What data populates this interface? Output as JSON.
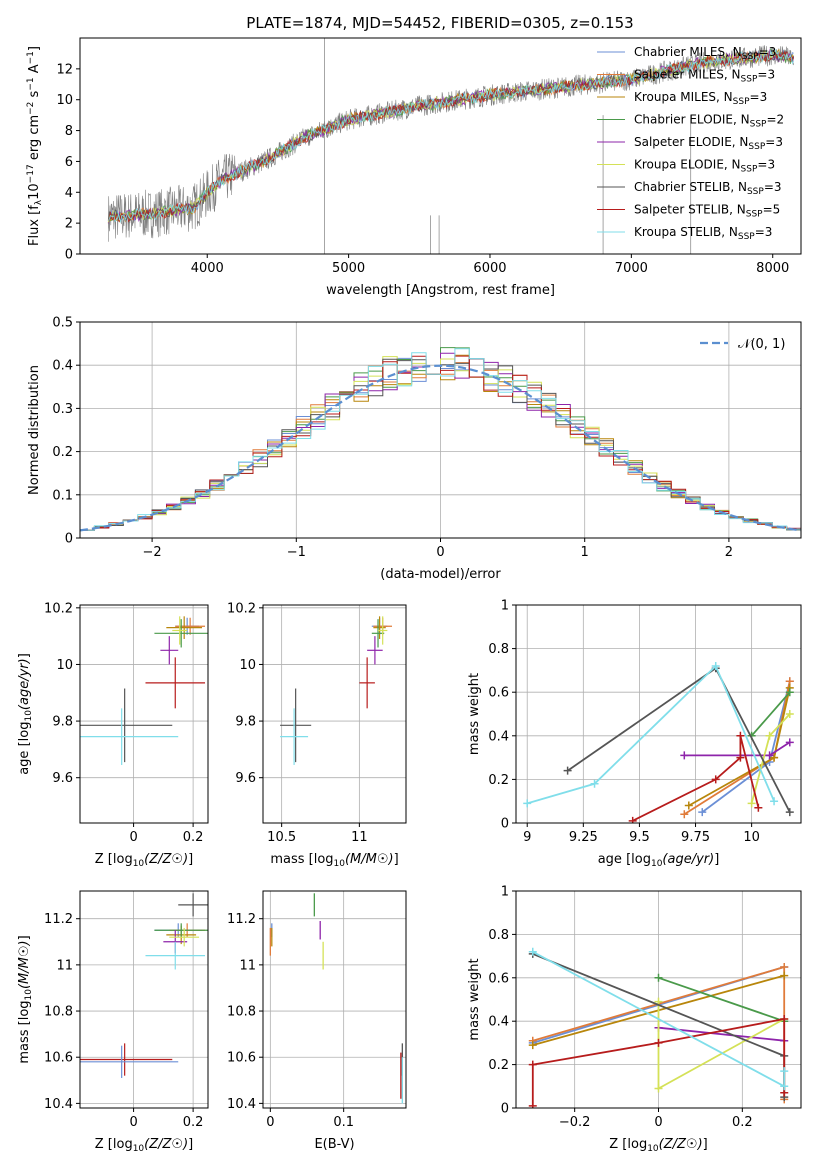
{
  "figure": {
    "title": "PLATE=1874, MJD=54452, FIBERID=0305, z=0.153"
  },
  "colors": {
    "grid": "#b0b0b0",
    "data_gray": "#808080",
    "models": [
      "#6b8fd6",
      "#e07b3a",
      "#b8860b",
      "#4a9a4a",
      "#8e24aa",
      "#d4e157",
      "#555555",
      "#b71c1c",
      "#80deea"
    ]
  },
  "chart_data": [
    {
      "id": "spectrum",
      "type": "line",
      "xlabel": "wavelength [Angstrom, rest frame]",
      "ylabel": "Flux [f_λ 10^-17 erg cm^-2 s^-1 A^-1]",
      "xlim": [
        3100,
        8200
      ],
      "ylim": [
        0,
        14
      ],
      "xticks": [
        4000,
        5000,
        6000,
        7000,
        8000
      ],
      "yticks": [
        0,
        2,
        4,
        6,
        8,
        10,
        12
      ],
      "grid": false,
      "legend_placement": "top-right",
      "data_range": [
        3300,
        8150
      ],
      "series": [
        {
          "name": "Chabrier MILES, N_SSP=3",
          "legend_main": "Chabrier MILES, N",
          "legend_sub": "SSP",
          "legend_tail": "=3",
          "color": "#6b8fd6"
        },
        {
          "name": "Salpeter MILES, N_SSP=3",
          "legend_main": "Salpeter MILES, N",
          "legend_sub": "SSP",
          "legend_tail": "=3",
          "color": "#e07b3a"
        },
        {
          "name": "Kroupa MILES, N_SSP=3",
          "legend_main": "Kroupa MILES, N",
          "legend_sub": "SSP",
          "legend_tail": "=3",
          "color": "#b8860b"
        },
        {
          "name": "Chabrier ELODIE, N_SSP=2",
          "legend_main": "Chabrier ELODIE, N",
          "legend_sub": "SSP",
          "legend_tail": "=2",
          "color": "#4a9a4a"
        },
        {
          "name": "Salpeter ELODIE, N_SSP=3",
          "legend_main": "Salpeter ELODIE, N",
          "legend_sub": "SSP",
          "legend_tail": "=3",
          "color": "#8e24aa"
        },
        {
          "name": "Kroupa ELODIE, N_SSP=3",
          "legend_main": "Kroupa ELODIE, N",
          "legend_sub": "SSP",
          "legend_tail": "=3",
          "color": "#d4e157"
        },
        {
          "name": "Chabrier STELIB, N_SSP=3",
          "legend_main": "Chabrier STELIB, N",
          "legend_sub": "SSP",
          "legend_tail": "=3",
          "color": "#555555"
        },
        {
          "name": "Salpeter STELIB, N_SSP=5",
          "legend_main": "Salpeter STELIB, N",
          "legend_sub": "SSP",
          "legend_tail": "=5",
          "color": "#b71c1c"
        },
        {
          "name": "Kroupa STELIB, N_SSP=3",
          "legend_main": "Kroupa STELIB, N",
          "legend_sub": "SSP",
          "legend_tail": "=3",
          "color": "#80deea"
        }
      ],
      "continuum_knots": [
        [
          3300,
          2.4
        ],
        [
          3600,
          2.6
        ],
        [
          3900,
          3.0
        ],
        [
          4100,
          4.8
        ],
        [
          4400,
          6.0
        ],
        [
          4700,
          7.6
        ],
        [
          5000,
          8.7
        ],
        [
          5500,
          9.6
        ],
        [
          6000,
          10.3
        ],
        [
          6500,
          10.8
        ],
        [
          7000,
          11.3
        ],
        [
          7500,
          12.4
        ],
        [
          8000,
          12.9
        ],
        [
          8150,
          12.7
        ]
      ]
    },
    {
      "id": "residuals",
      "type": "line",
      "xlabel": "(data-model)/error",
      "ylabel": "Normed distribution",
      "xlim": [
        -2.5,
        2.5
      ],
      "ylim": [
        0,
        0.5
      ],
      "xticks": [
        -2,
        -1,
        0,
        1,
        2
      ],
      "yticks": [
        0.0,
        0.1,
        0.2,
        0.3,
        0.4,
        0.5
      ],
      "grid": true,
      "legend_placement": "top-right",
      "legend_label": "𝒩(0, 1)",
      "bins": {
        "start": -2.5,
        "width": 0.1,
        "count": 50
      }
    },
    {
      "id": "age-vs-z",
      "type": "scatter",
      "xlabel": "Z [log10(Z/Z☉)]",
      "ylabel": "age [log10(age/yr)]",
      "xlim": [
        -0.18,
        0.25
      ],
      "ylim": [
        9.44,
        10.21
      ],
      "xticks": [
        0.0,
        0.2
      ],
      "yticks": [
        9.6,
        9.8,
        10.0,
        10.2
      ],
      "grid": true,
      "points": [
        {
          "x": 0.18,
          "xerr": 0.04,
          "y": 10.135,
          "yerr": 0.03
        },
        {
          "x": 0.19,
          "xerr": 0.05,
          "y": 10.135,
          "yerr": 0.03
        },
        {
          "x": 0.17,
          "xerr": 0.06,
          "y": 10.13,
          "yerr": 0.04
        },
        {
          "x": 0.16,
          "xerr": 0.09,
          "y": 10.11,
          "yerr": 0.05
        },
        {
          "x": 0.12,
          "xerr": 0.03,
          "y": 10.05,
          "yerr": 0.05
        },
        {
          "x": 0.155,
          "xerr": 0.025,
          "y": 10.12,
          "yerr": 0.05
        },
        {
          "x": -0.03,
          "xerr": 0.16,
          "y": 9.785,
          "yerr": 0.13
        },
        {
          "x": 0.14,
          "xerr": 0.1,
          "y": 9.935,
          "yerr": 0.09
        },
        {
          "x": -0.04,
          "xerr": 0.19,
          "y": 9.745,
          "yerr": 0.1
        }
      ]
    },
    {
      "id": "age-vs-mass",
      "type": "scatter",
      "xlabel": "mass [log10(M/M☉)]",
      "ylabel": "",
      "xlim": [
        10.38,
        11.3
      ],
      "ylim": [
        9.44,
        10.21
      ],
      "xticks": [
        10.5,
        11.0
      ],
      "yticks": [
        9.6,
        9.8,
        10.0,
        10.2
      ],
      "grid": true,
      "points": [
        {
          "x": 11.13,
          "xerr": 0.05,
          "y": 10.135,
          "yerr": 0.03
        },
        {
          "x": 11.15,
          "xerr": 0.06,
          "y": 10.135,
          "yerr": 0.03
        },
        {
          "x": 11.13,
          "xerr": 0.04,
          "y": 10.13,
          "yerr": 0.04
        },
        {
          "x": 11.12,
          "xerr": 0.04,
          "y": 10.11,
          "yerr": 0.05
        },
        {
          "x": 11.1,
          "xerr": 0.05,
          "y": 10.05,
          "yerr": 0.05
        },
        {
          "x": 11.15,
          "xerr": 0.03,
          "y": 10.12,
          "yerr": 0.05
        },
        {
          "x": 10.59,
          "xerr": 0.1,
          "y": 9.785,
          "yerr": 0.13
        },
        {
          "x": 11.05,
          "xerr": 0.05,
          "y": 9.935,
          "yerr": 0.09
        },
        {
          "x": 10.58,
          "xerr": 0.09,
          "y": 9.745,
          "yerr": 0.1
        }
      ]
    },
    {
      "id": "weight-vs-age",
      "type": "line",
      "xlabel": "age [log10(age/yr)]",
      "ylabel": "mass weight",
      "xlim": [
        8.95,
        10.22
      ],
      "ylim": [
        0,
        1
      ],
      "xticks": [
        9.0,
        9.25,
        9.5,
        9.75,
        10.0
      ],
      "yticks": [
        0.0,
        0.2,
        0.4,
        0.6,
        0.8,
        1.0
      ],
      "grid": true,
      "series": [
        {
          "points": [
            [
              9.78,
              0.05
            ],
            [
              10.08,
              0.28
            ],
            [
              10.17,
              0.65
            ]
          ]
        },
        {
          "points": [
            [
              9.7,
              0.04
            ],
            [
              10.1,
              0.3
            ],
            [
              10.17,
              0.65
            ]
          ]
        },
        {
          "points": [
            [
              9.72,
              0.08
            ],
            [
              10.1,
              0.3
            ],
            [
              10.17,
              0.62
            ]
          ]
        },
        {
          "points": [
            [
              10.0,
              0.4
            ],
            [
              10.17,
              0.6
            ]
          ]
        },
        {
          "points": [
            [
              9.7,
              0.31
            ],
            [
              10.08,
              0.31
            ],
            [
              10.17,
              0.37
            ]
          ]
        },
        {
          "points": [
            [
              10.0,
              0.09
            ],
            [
              10.08,
              0.4
            ],
            [
              10.17,
              0.5
            ]
          ]
        },
        {
          "points": [
            [
              9.18,
              0.24
            ],
            [
              9.84,
              0.71
            ],
            [
              10.17,
              0.05
            ]
          ]
        },
        {
          "points": [
            [
              9.47,
              0.01
            ],
            [
              9.84,
              0.2
            ],
            [
              9.95,
              0.3
            ],
            [
              9.95,
              0.4
            ],
            [
              10.03,
              0.07
            ]
          ]
        },
        {
          "points": [
            [
              9.0,
              0.09
            ],
            [
              9.3,
              0.18
            ],
            [
              9.84,
              0.72
            ],
            [
              10.1,
              0.1
            ]
          ]
        }
      ]
    },
    {
      "id": "mass-vs-z",
      "type": "scatter",
      "xlabel": "Z [log10(Z/Z☉)]",
      "ylabel": "mass [log10(M/M☉)]",
      "xlim": [
        -0.18,
        0.25
      ],
      "ylim": [
        10.38,
        11.32
      ],
      "xticks": [
        0.0,
        0.2
      ],
      "yticks": [
        10.4,
        10.6,
        10.8,
        11.0,
        11.2
      ],
      "grid": true,
      "points": [
        {
          "x": 0.15,
          "xerr": 0.08,
          "y": 11.15,
          "yerr": 0.03
        },
        {
          "x": 0.18,
          "xerr": 0.06,
          "y": 11.15,
          "yerr": 0.03
        },
        {
          "x": 0.16,
          "xerr": 0.05,
          "y": 11.13,
          "yerr": 0.04
        },
        {
          "x": 0.16,
          "xerr": 0.09,
          "y": 11.15,
          "yerr": 0.03
        },
        {
          "x": 0.14,
          "xerr": 0.04,
          "y": 11.1,
          "yerr": 0.05
        },
        {
          "x": 0.17,
          "xerr": 0.05,
          "y": 11.12,
          "yerr": 0.04
        },
        {
          "x": 0.2,
          "xerr": 0.05,
          "y": 11.26,
          "yerr": 0.05
        },
        {
          "x": -0.03,
          "xerr": 0.16,
          "y": 10.59,
          "yerr": 0.07
        },
        {
          "x": 0.14,
          "xerr": 0.1,
          "y": 11.04,
          "yerr": 0.06
        },
        {
          "x": -0.04,
          "xerr": 0.19,
          "y": 10.58,
          "yerr": 0.07
        }
      ]
    },
    {
      "id": "mass-vs-ebv",
      "type": "scatter",
      "xlabel": "E(B-V)",
      "ylabel": "",
      "xlim": [
        -0.01,
        0.185
      ],
      "ylim": [
        10.38,
        11.32
      ],
      "xticks": [
        0.0,
        0.1
      ],
      "yticks": [
        10.4,
        10.6,
        10.8,
        11.0,
        11.2
      ],
      "grid": true,
      "points": [
        {
          "x": 0.002,
          "xerr": 0,
          "y": 11.15,
          "yerr": 0.03
        },
        {
          "x": 0.0,
          "xerr": 0,
          "y": 11.1,
          "yerr": 0.06
        },
        {
          "x": 0.002,
          "xerr": 0,
          "y": 11.12,
          "yerr": 0.04
        },
        {
          "x": 0.06,
          "xerr": 0,
          "y": 11.26,
          "yerr": 0.05
        },
        {
          "x": 0.068,
          "xerr": 0,
          "y": 11.15,
          "yerr": 0.04
        },
        {
          "x": 0.072,
          "xerr": 0,
          "y": 11.04,
          "yerr": 0.06
        },
        {
          "x": 0.18,
          "xerr": 0,
          "y": 10.59,
          "yerr": 0.07
        },
        {
          "x": 0.178,
          "xerr": 0,
          "y": 10.52,
          "yerr": 0.1
        },
        {
          "x": 0.18,
          "xerr": 0,
          "y": 10.5,
          "yerr": 0.1
        }
      ]
    },
    {
      "id": "weight-vs-z",
      "type": "line",
      "xlabel": "Z [log10(Z/Z☉)]",
      "ylabel": "mass weight",
      "xlim": [
        -0.34,
        0.34
      ],
      "ylim": [
        0,
        1
      ],
      "xticks": [
        -0.2,
        0.0,
        0.2
      ],
      "yticks": [
        0.0,
        0.2,
        0.4,
        0.6,
        0.8,
        1.0
      ],
      "grid": true,
      "series": [
        {
          "points": [
            [
              -0.3,
              0.3
            ],
            [
              0.3,
              0.65
            ]
          ]
        },
        {
          "points": [
            [
              -0.3,
              0.31
            ],
            [
              0.3,
              0.65
            ],
            [
              0.3,
              0.04
            ]
          ]
        },
        {
          "points": [
            [
              -0.3,
              0.29
            ],
            [
              0.3,
              0.61
            ]
          ]
        },
        {
          "points": [
            [
              0.0,
              0.6
            ],
            [
              0.3,
              0.4
            ]
          ]
        },
        {
          "points": [
            [
              0.0,
              0.37
            ],
            [
              0.3,
              0.31
            ]
          ]
        },
        {
          "points": [
            [
              0.0,
              0.49
            ],
            [
              0.0,
              0.09
            ],
            [
              0.3,
              0.41
            ]
          ]
        },
        {
          "points": [
            [
              -0.3,
              0.71
            ],
            [
              0.3,
              0.24
            ],
            [
              0.3,
              0.05
            ]
          ]
        },
        {
          "points": [
            [
              -0.3,
              0.01
            ],
            [
              -0.3,
              0.2
            ],
            [
              0.0,
              0.3
            ],
            [
              0.3,
              0.41
            ],
            [
              0.3,
              0.07
            ]
          ]
        },
        {
          "points": [
            [
              -0.3,
              0.72
            ],
            [
              0.3,
              0.1
            ],
            [
              0.3,
              0.17
            ]
          ]
        }
      ]
    }
  ]
}
